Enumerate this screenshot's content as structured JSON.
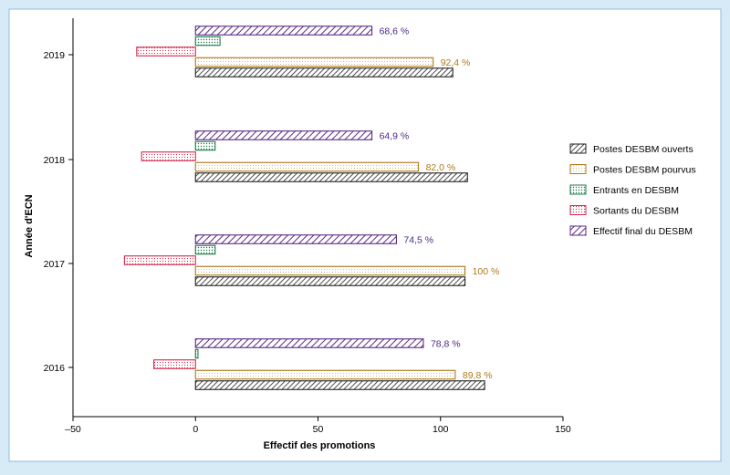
{
  "chart_data": {
    "type": "bar",
    "orientation": "horizontal",
    "xlabel": "Effectif des promotions",
    "ylabel": "Année d'ECN",
    "xlim": [
      -50,
      150
    ],
    "xticks": [
      "–50",
      "0",
      "50",
      "100",
      "150"
    ],
    "xtick_values": [
      -50,
      0,
      50,
      100,
      150
    ],
    "categories": [
      "2019",
      "2018",
      "2017",
      "2016"
    ],
    "legend_position": "right",
    "grid": false,
    "series": [
      {
        "key": "final",
        "name": "Effectif final du DESBM",
        "color": "#5b2a86",
        "pattern": "diag",
        "values": [
          72,
          72,
          82,
          93
        ],
        "labels": [
          "68,6 %",
          "64,9 %",
          "74,5 %",
          "78,8 %"
        ],
        "label_color": "#4b2a86"
      },
      {
        "key": "entr",
        "name": "Entrants en DESBM",
        "color": "#1f7a4a",
        "pattern": "dots",
        "values": [
          10,
          8,
          8,
          1
        ],
        "labels": []
      },
      {
        "key": "sort",
        "name": "Sortants du DESBM",
        "color": "#d6264a",
        "pattern": "dots",
        "values": [
          -24,
          -22,
          -29,
          -17
        ],
        "labels": []
      },
      {
        "key": "pourvu",
        "name": "Postes DESBM pourvus",
        "color": "#b07a1a",
        "pattern": "dots",
        "values": [
          97,
          91,
          110,
          106
        ],
        "labels": [
          "92,4 %",
          "82,0 %",
          "100 %",
          "89,8 %"
        ],
        "label_color": "#b07a1a"
      },
      {
        "key": "ouvert",
        "name": "Postes DESBM ouverts",
        "color": "#222222",
        "pattern": "diag",
        "values": [
          105,
          111,
          110,
          118
        ],
        "labels": []
      }
    ],
    "legend_order": [
      "ouvert",
      "pourvu",
      "entr",
      "sort",
      "final"
    ]
  }
}
